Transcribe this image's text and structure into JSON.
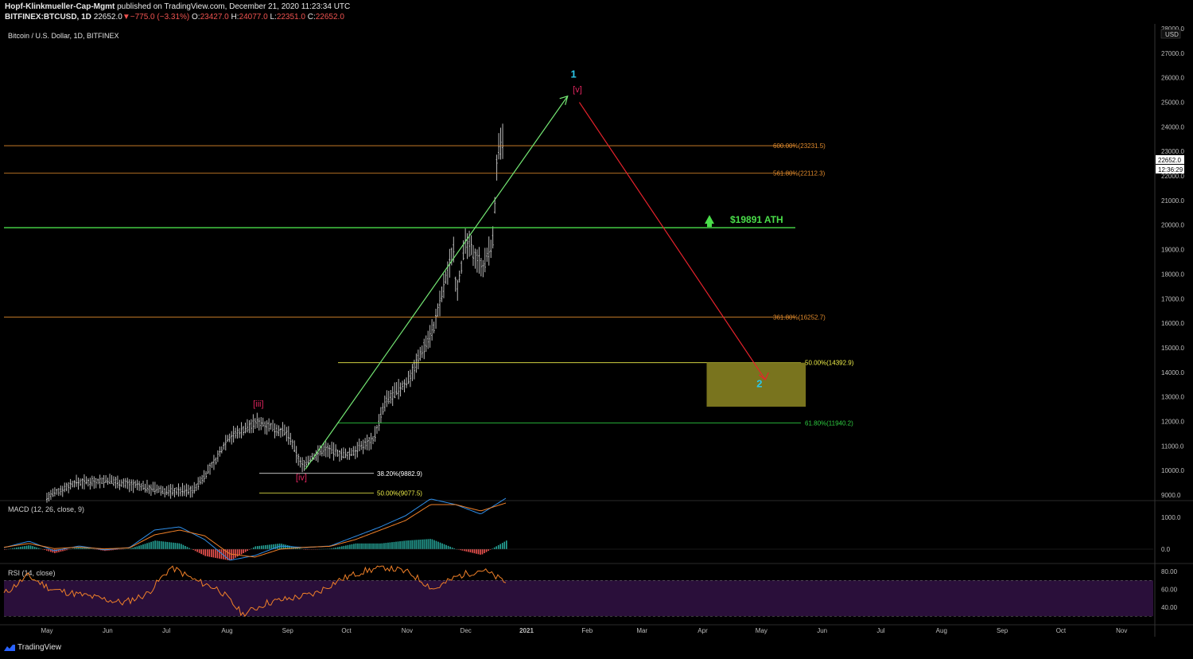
{
  "header": {
    "publisher": "Hopf-Klinkmueller-Cap-Mgmt",
    "published_text": "published on TradingView.com, December 21, 2020 11:23:34 UTC",
    "symbol": "BITFINEX:BTCUSD, 1D",
    "last": "22652.0",
    "change": "−775.0 (−3.31%)",
    "o_label": "O:",
    "o_value": "23427.0",
    "h_label": "H:",
    "h_value": "24077.0",
    "l_label": "L:",
    "l_value": "22351.0",
    "c_label": "C:",
    "c_value": "22652.0"
  },
  "pane_title": "Bitcoin / U.S. Dollar, 1D, BITFINEX",
  "macd_title": "MACD (12, 26, close, 9)",
  "rsi_title": "RSI (14, close)",
  "brand": "TradingView",
  "colors": {
    "background": "#000000",
    "fib_orange": "#e08a2c",
    "ath_green": "#4ade4a",
    "fib_yellow": "#f0f04a",
    "fib_green": "#2ecc40",
    "wave_blue": "#2cc6e8",
    "wave_red": "#e0245e",
    "arrow_green": "#74e874",
    "arrow_red": "#e8232c",
    "target_box": "#7f7a20",
    "macd_line": "#2f8ee8",
    "signal_line": "#f08028",
    "rsi_line": "#f08028",
    "rsi_band": "#2a0f3a"
  },
  "chart_data": [
    {
      "type": "line",
      "title": "Bitcoin / U.S. Dollar, 1D, BITFINEX",
      "currency": "USD",
      "last_price_label": "22652.0",
      "countdown_label": "12:36:29",
      "y_ticks": [
        "9000.0",
        "10000.0",
        "11000.0",
        "12000.0",
        "13000.0",
        "14000.0",
        "15000.0",
        "16000.0",
        "17000.0",
        "18000.0",
        "19000.0",
        "20000.0",
        "21000.0",
        "22000.0",
        "23000.0",
        "24000.0",
        "25000.0",
        "26000.0",
        "27000.0",
        "28000.0"
      ],
      "ylim": [
        8900,
        28200
      ],
      "x_ticks": [
        "May",
        "Jun",
        "Jul",
        "Aug",
        "Sep",
        "Oct",
        "Nov",
        "Dec",
        "2021",
        "Feb",
        "Mar",
        "Apr",
        "May",
        "Jun",
        "Jul",
        "Aug",
        "Sep",
        "Oct",
        "Nov"
      ],
      "x": [
        "2020-05-01",
        "2020-05-15",
        "2020-06-01",
        "2020-06-15",
        "2020-07-01",
        "2020-07-15",
        "2020-07-27",
        "2020-08-01",
        "2020-08-10",
        "2020-08-17",
        "2020-09-01",
        "2020-09-08",
        "2020-09-20",
        "2020-10-01",
        "2020-10-15",
        "2020-10-21",
        "2020-11-01",
        "2020-11-15",
        "2020-11-25",
        "2020-11-26",
        "2020-12-01",
        "2020-12-10",
        "2020-12-15",
        "2020-12-17",
        "2020-12-20"
      ],
      "series": [
        {
          "values": [
            8900,
            9500,
            9600,
            9400,
            9150,
            9200,
            10500,
            11300,
            11700,
            12000,
            11500,
            10200,
            10900,
            10600,
            11300,
            12800,
            13600,
            15900,
            19200,
            17200,
            19300,
            18300,
            19400,
            22800,
            23400
          ]
        }
      ],
      "levels": [
        {
          "label": "600.00%(23231.5)",
          "price": 23231.5,
          "color": "orange"
        },
        {
          "label": "561.80%(22112.3)",
          "price": 22112.3,
          "color": "orange"
        },
        {
          "label": "$19891 ATH",
          "price": 19891,
          "color": "green"
        },
        {
          "label": "361.80%(16252.7)",
          "price": 16252.7,
          "color": "orange"
        },
        {
          "label": "50.00%(14392.9)",
          "price": 14392.9,
          "color": "yellow"
        },
        {
          "label": "61.80%(11940.2)",
          "price": 11940.2,
          "color": "green"
        },
        {
          "label": "38.20%(9882.9)",
          "price": 9882.9,
          "color": "white"
        },
        {
          "label": "50.00%(9077.5)",
          "price": 9077.5,
          "color": "yellow"
        }
      ],
      "wave_labels": [
        {
          "text": "[iii]",
          "date": "2020-08-17",
          "price": 12600
        },
        {
          "text": "[iv]",
          "date": "2020-09-08",
          "price": 9600
        },
        {
          "text": "[v]",
          "date": "2021-01-27",
          "price": 25400
        },
        {
          "text": "1",
          "date": "2021-01-25",
          "price": 26000
        },
        {
          "text": "2",
          "date": "2021-04-30",
          "price": 13400
        }
      ],
      "target_zone": {
        "price_top": 14392.9,
        "price_bottom": 12600,
        "date_start": "2021-04-01",
        "date_end": "2021-05-20"
      }
    },
    {
      "type": "line",
      "title": "MACD (12, 26, close, 9)",
      "y_ticks": [
        "1000.0",
        "0.0"
      ],
      "ylim": [
        -450,
        1900
      ],
      "series": [
        {
          "name": "MACD",
          "values": [
            50,
            250,
            -50,
            100,
            -20,
            50,
            600,
            700,
            300,
            -350,
            -200,
            100,
            50,
            100,
            400,
            700,
            1050,
            1580,
            1400,
            1100,
            1600
          ]
        },
        {
          "name": "Signal",
          "values": [
            60,
            180,
            20,
            60,
            10,
            40,
            450,
            600,
            420,
            -150,
            -250,
            0,
            60,
            90,
            300,
            600,
            900,
            1400,
            1400,
            1200,
            1450
          ]
        }
      ]
    },
    {
      "type": "line",
      "title": "RSI (14, close)",
      "y_ticks": [
        "80.00",
        "60.00",
        "40.00"
      ],
      "ylim": [
        26,
        86
      ],
      "series": [
        {
          "values": [
            55,
            75,
            60,
            55,
            50,
            45,
            55,
            85,
            70,
            60,
            32,
            45,
            50,
            55,
            70,
            80,
            85,
            78,
            60,
            75,
            82,
            68
          ]
        }
      ]
    }
  ]
}
